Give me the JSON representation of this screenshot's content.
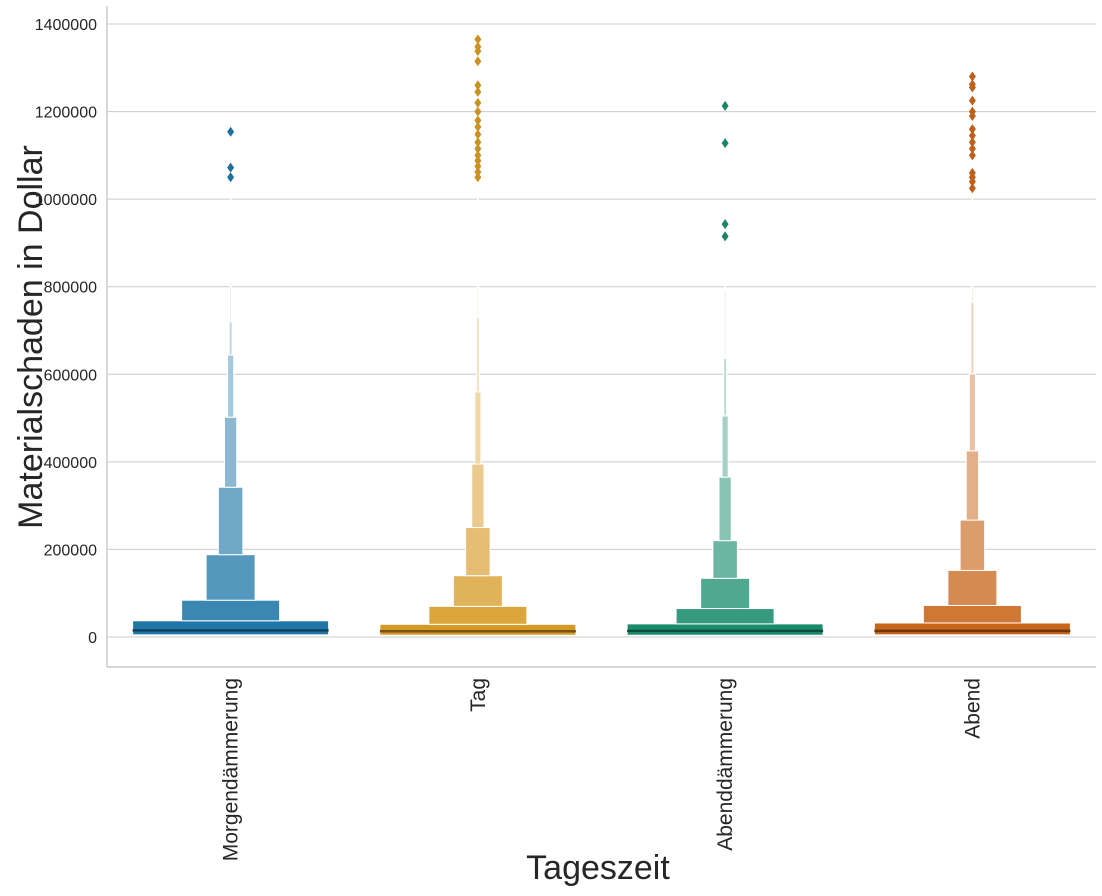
{
  "chart_data": {
    "type": "boxen",
    "xlabel": "Tageszeit",
    "ylabel": "Materialschaden in Dollar",
    "ylim": [
      -70000,
      1440000
    ],
    "yticks": [
      0,
      200000,
      400000,
      600000,
      800000,
      1000000,
      1200000,
      1400000
    ],
    "yticklabels": [
      "0",
      "200000",
      "400000",
      "600000",
      "800000",
      "1000000",
      "1200000",
      "1400000"
    ],
    "grid": "horizontal",
    "categories": [
      "Morgendämmerung",
      "Tag",
      "Abenddämmerung",
      "Abend"
    ],
    "colors": [
      "#1f77a8",
      "#d69a24",
      "#1a8c6e",
      "#c8651a"
    ],
    "series": [
      {
        "category": "Morgendämmerung",
        "median": 15000,
        "levels": [
          [
            5000,
            37000
          ],
          [
            37000,
            84000
          ],
          [
            84000,
            188000
          ],
          [
            188000,
            342000
          ],
          [
            342000,
            502000
          ],
          [
            502000,
            644000
          ],
          [
            644000,
            720000
          ],
          [
            720000,
            810000
          ],
          [
            810000,
            1000000
          ]
        ],
        "outliers": [
          1050000,
          1072000,
          1154000
        ]
      },
      {
        "category": "Tag",
        "median": 13000,
        "levels": [
          [
            4000,
            29000
          ],
          [
            29000,
            70000
          ],
          [
            70000,
            140000
          ],
          [
            140000,
            250000
          ],
          [
            250000,
            395000
          ],
          [
            395000,
            560000
          ],
          [
            560000,
            730000
          ],
          [
            730000,
            800000
          ],
          [
            800000,
            1000000
          ]
        ],
        "outliers": [
          1050000,
          1062000,
          1075000,
          1088000,
          1100000,
          1115000,
          1130000,
          1148000,
          1165000,
          1180000,
          1200000,
          1220000,
          1245000,
          1260000,
          1315000,
          1338000,
          1348000,
          1365000
        ]
      },
      {
        "category": "Abenddämmerung",
        "median": 14000,
        "levels": [
          [
            4000,
            30000
          ],
          [
            30000,
            65000
          ],
          [
            65000,
            134000
          ],
          [
            134000,
            220000
          ],
          [
            220000,
            365000
          ],
          [
            365000,
            505000
          ],
          [
            505000,
            636000
          ],
          [
            636000,
            790000
          ],
          [
            790000,
            950000
          ]
        ],
        "outliers": [
          915000,
          943000,
          1128000,
          1213000
        ]
      },
      {
        "category": "Abend",
        "median": 14000,
        "levels": [
          [
            5000,
            32000
          ],
          [
            32000,
            72000
          ],
          [
            72000,
            152000
          ],
          [
            152000,
            267000
          ],
          [
            267000,
            425000
          ],
          [
            425000,
            601000
          ],
          [
            601000,
            765000
          ],
          [
            765000,
            800000
          ],
          [
            800000,
            1010000
          ]
        ],
        "outliers": [
          1025000,
          1040000,
          1050000,
          1060000,
          1100000,
          1115000,
          1130000,
          1145000,
          1160000,
          1190000,
          1200000,
          1225000,
          1255000,
          1262000,
          1280000
        ]
      }
    ]
  }
}
